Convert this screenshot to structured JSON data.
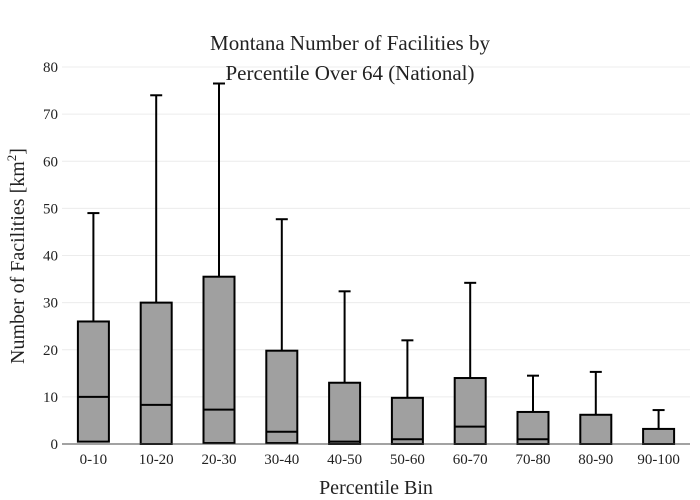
{
  "chart_data": {
    "type": "box",
    "title_line1": "Montana Number of Facilities by",
    "title_line2": "Percentile Over 64 (National)",
    "xlabel": "Percentile Bin",
    "ylabel": "Number of Facilities  [km",
    "ylabel_sup": "2",
    "ylabel_end": "]",
    "ylim": [
      0,
      80
    ],
    "yticks": [
      0,
      10,
      20,
      30,
      40,
      50,
      60,
      70,
      80
    ],
    "grid": true,
    "categories": [
      "0-10",
      "10-20",
      "20-30",
      "30-40",
      "40-50",
      "50-60",
      "60-70",
      "70-80",
      "80-90",
      "90-100"
    ],
    "boxes": [
      {
        "min": 0,
        "q1": 0.5,
        "median": 10,
        "q3": 26,
        "max": 49
      },
      {
        "min": 0,
        "q1": 0,
        "median": 8.3,
        "q3": 30,
        "max": 74
      },
      {
        "min": 0,
        "q1": 0.2,
        "median": 7.3,
        "q3": 35.5,
        "max": 76.5
      },
      {
        "min": 0,
        "q1": 0.2,
        "median": 2.6,
        "q3": 19.8,
        "max": 47.7
      },
      {
        "min": 0,
        "q1": 0,
        "median": 0.5,
        "q3": 13,
        "max": 32.4
      },
      {
        "min": 0,
        "q1": 0,
        "median": 1,
        "q3": 9.8,
        "max": 22
      },
      {
        "min": 0,
        "q1": 0,
        "median": 3.7,
        "q3": 14,
        "max": 34.2
      },
      {
        "min": 0,
        "q1": 0,
        "median": 1,
        "q3": 6.8,
        "max": 14.5
      },
      {
        "min": 0,
        "q1": 0,
        "median": 0,
        "q3": 6.2,
        "max": 15.3
      },
      {
        "min": 0,
        "q1": 0,
        "median": 0,
        "q3": 3.2,
        "max": 7.2
      }
    ]
  }
}
